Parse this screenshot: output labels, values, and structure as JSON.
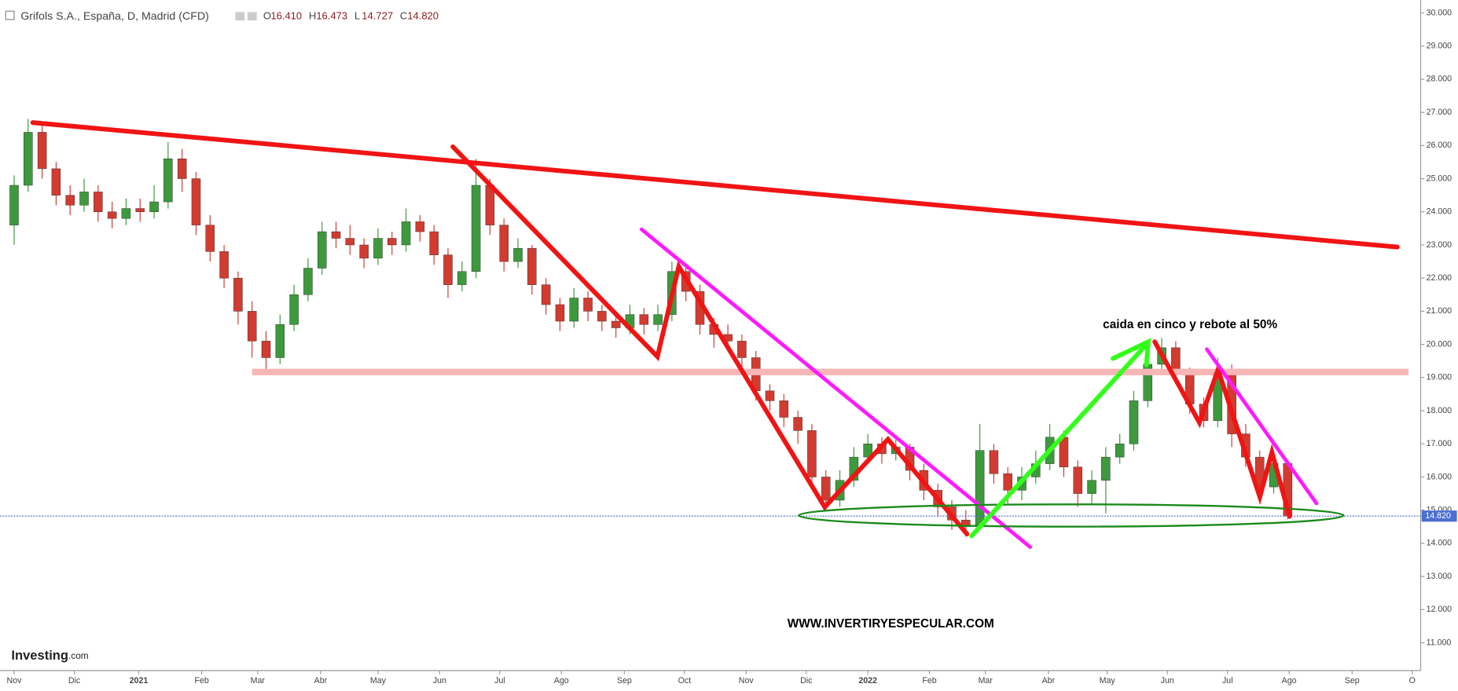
{
  "header": {
    "symbol": "Grifols S.A., España, D, Madrid (CFD)",
    "ohlc": [
      {
        "label": "O",
        "value": "16.410"
      },
      {
        "label": "H",
        "value": "16.473"
      },
      {
        "label": "L",
        "value": "14.727"
      },
      {
        "label": "C",
        "value": "14.820"
      }
    ]
  },
  "logo": {
    "brand": "Investing",
    "suffix": ".com"
  },
  "chart_data": {
    "type": "candlestick",
    "annotations": [
      "caida en cinco y rebote al 50%",
      "WWW.INVERTIRYESPECULAR.COM"
    ],
    "up_color": "#3c9a3c",
    "down_color": "#d23b30",
    "x": [
      0,
      1,
      2,
      3,
      4,
      5,
      6,
      7,
      8,
      9,
      10,
      11,
      12,
      13,
      14,
      15,
      16,
      17,
      18,
      19,
      20,
      21,
      22,
      23,
      24,
      25,
      26,
      27,
      28,
      29,
      30,
      31,
      32,
      33,
      34,
      35,
      36,
      37,
      38,
      39,
      40,
      41,
      42,
      43,
      44,
      45,
      46,
      47,
      48,
      49,
      50,
      51,
      52,
      53,
      54,
      55,
      56,
      57,
      58,
      59,
      60,
      61,
      62,
      63,
      64,
      65,
      66,
      67,
      68,
      69,
      70,
      71,
      72,
      73,
      74,
      75,
      76,
      77,
      78,
      79,
      80,
      81,
      82,
      83,
      84,
      85,
      86,
      87,
      88,
      89,
      90,
      91
    ],
    "series": [
      {
        "name": "Grifols S.A.",
        "open": [
          23.6,
          24.8,
          26.4,
          25.3,
          24.5,
          24.2,
          24.6,
          24.0,
          23.8,
          24.1,
          24.0,
          24.3,
          25.6,
          25.0,
          23.6,
          22.8,
          22.0,
          21.0,
          20.1,
          19.6,
          20.6,
          21.5,
          22.3,
          23.4,
          23.2,
          23.0,
          22.6,
          23.2,
          23.0,
          23.7,
          23.4,
          22.7,
          21.8,
          22.2,
          24.8,
          23.6,
          22.5,
          22.9,
          21.8,
          21.2,
          20.7,
          21.4,
          21.0,
          20.7,
          20.5,
          20.9,
          20.6,
          20.9,
          22.2,
          21.6,
          20.6,
          20.3,
          20.1,
          19.6,
          18.6,
          18.3,
          17.8,
          17.4,
          16.0,
          15.3,
          15.9,
          16.6,
          17.0,
          16.7,
          16.9,
          16.2,
          15.6,
          15.1,
          14.7,
          14.5,
          16.8,
          16.1,
          15.6,
          16.0,
          16.4,
          17.2,
          16.3,
          15.5,
          15.9,
          16.6,
          17.0,
          18.3,
          19.4,
          19.9,
          19.1,
          18.2,
          17.7,
          19.2,
          17.3,
          16.6,
          15.7,
          16.41
        ],
        "high": [
          25.1,
          26.8,
          26.6,
          25.5,
          24.8,
          25.0,
          24.8,
          24.3,
          24.4,
          24.4,
          24.8,
          26.1,
          25.9,
          25.2,
          23.9,
          23.0,
          22.2,
          21.3,
          20.4,
          20.9,
          21.8,
          22.6,
          23.7,
          23.7,
          23.6,
          23.2,
          23.5,
          23.4,
          24.1,
          23.9,
          23.6,
          22.9,
          22.5,
          25.6,
          25.0,
          23.8,
          23.2,
          23.0,
          22.0,
          21.4,
          21.7,
          21.6,
          21.2,
          20.9,
          21.2,
          21.1,
          21.2,
          22.5,
          22.4,
          21.8,
          20.8,
          20.6,
          20.3,
          19.8,
          18.8,
          18.5,
          18.0,
          17.6,
          16.2,
          16.2,
          16.9,
          17.3,
          17.2,
          17.2,
          17.0,
          16.4,
          15.8,
          15.3,
          15.0,
          17.6,
          17.0,
          16.3,
          16.3,
          16.8,
          17.6,
          17.4,
          16.5,
          16.2,
          16.9,
          17.3,
          18.6,
          19.7,
          20.2,
          20.1,
          19.3,
          18.4,
          19.6,
          19.4,
          17.6,
          16.8,
          16.8,
          16.473
        ],
        "low": [
          23.0,
          24.6,
          25.0,
          24.2,
          23.9,
          24.0,
          23.7,
          23.5,
          23.6,
          23.7,
          23.8,
          24.1,
          24.6,
          23.3,
          22.5,
          21.7,
          20.6,
          19.6,
          19.2,
          19.4,
          20.4,
          21.3,
          22.1,
          22.9,
          22.7,
          22.3,
          22.4,
          22.7,
          22.8,
          23.1,
          22.4,
          21.4,
          21.6,
          22.0,
          23.3,
          22.2,
          22.3,
          21.5,
          20.9,
          20.4,
          20.5,
          20.7,
          20.4,
          20.2,
          20.3,
          20.3,
          20.4,
          20.7,
          21.3,
          20.3,
          19.9,
          19.8,
          19.3,
          18.3,
          18.0,
          17.5,
          17.0,
          15.7,
          15.0,
          15.1,
          15.7,
          16.4,
          16.4,
          16.5,
          15.9,
          15.3,
          14.8,
          14.4,
          14.2,
          14.4,
          15.8,
          15.2,
          15.3,
          15.8,
          16.2,
          16.0,
          15.1,
          15.2,
          14.9,
          16.4,
          16.8,
          18.1,
          19.2,
          18.8,
          17.9,
          17.5,
          17.5,
          16.9,
          16.3,
          15.4,
          15.5,
          14.727
        ],
        "close": [
          24.8,
          26.4,
          25.3,
          24.5,
          24.2,
          24.6,
          24.0,
          23.8,
          24.1,
          24.0,
          24.3,
          25.6,
          25.0,
          23.6,
          22.8,
          22.0,
          21.0,
          20.1,
          19.6,
          20.6,
          21.5,
          22.3,
          23.4,
          23.2,
          23.0,
          22.6,
          23.2,
          23.0,
          23.7,
          23.4,
          22.7,
          21.8,
          22.2,
          24.8,
          23.6,
          22.5,
          22.9,
          21.8,
          21.2,
          20.7,
          21.4,
          21.0,
          20.7,
          20.5,
          20.9,
          20.6,
          20.9,
          22.2,
          21.6,
          20.6,
          20.3,
          20.1,
          19.6,
          18.6,
          18.3,
          17.8,
          17.4,
          16.0,
          15.3,
          15.9,
          16.6,
          17.0,
          16.7,
          16.9,
          16.2,
          15.6,
          15.1,
          14.7,
          14.5,
          16.8,
          16.1,
          15.6,
          16.0,
          16.4,
          17.2,
          16.3,
          15.5,
          15.9,
          16.6,
          17.0,
          18.3,
          19.4,
          19.9,
          19.1,
          18.2,
          17.7,
          19.2,
          17.3,
          16.6,
          15.7,
          16.41,
          14.82
        ]
      }
    ],
    "xlim": [
      -1,
      100.5
    ],
    "xticks": [
      {
        "value": 0,
        "label": "Nov"
      },
      {
        "value": 4.3,
        "label": "Dic"
      },
      {
        "value": 8.9,
        "label": "2021"
      },
      {
        "value": 13.4,
        "label": "Feb"
      },
      {
        "value": 17.4,
        "label": "Mar"
      },
      {
        "value": 21.9,
        "label": "Abr"
      },
      {
        "value": 26,
        "label": "May"
      },
      {
        "value": 30.4,
        "label": "Jun"
      },
      {
        "value": 34.7,
        "label": "Jul"
      },
      {
        "value": 39.1,
        "label": "Ago"
      },
      {
        "value": 43.6,
        "label": "Sep"
      },
      {
        "value": 47.9,
        "label": "Oct"
      },
      {
        "value": 52.3,
        "label": "Nov"
      },
      {
        "value": 56.6,
        "label": "Dic"
      },
      {
        "value": 61,
        "label": "2022"
      },
      {
        "value": 65.4,
        "label": "Feb"
      },
      {
        "value": 69.4,
        "label": "Mar"
      },
      {
        "value": 73.9,
        "label": "Abr"
      },
      {
        "value": 78.1,
        "label": "May"
      },
      {
        "value": 82.4,
        "label": "Jun"
      },
      {
        "value": 86.7,
        "label": "Jul"
      },
      {
        "value": 91.1,
        "label": "Ago"
      },
      {
        "value": 95.6,
        "label": "Sep"
      },
      {
        "value": 99.9,
        "label": "O"
      }
    ],
    "ylim": [
      10.16,
      30.39
    ],
    "yticks": [
      {
        "value": 11,
        "label": "11.000"
      },
      {
        "value": 12,
        "label": "12.000"
      },
      {
        "value": 13,
        "label": "13.000"
      },
      {
        "value": 14,
        "label": "14.000"
      },
      {
        "value": 15,
        "label": "15.000"
      },
      {
        "value": 16,
        "label": "16.000"
      },
      {
        "value": 17,
        "label": "17.000"
      },
      {
        "value": 18,
        "label": "18.000"
      },
      {
        "value": 19,
        "label": "19.000"
      },
      {
        "value": 20,
        "label": "20.000"
      },
      {
        "value": 21,
        "label": "21.000"
      },
      {
        "value": 22,
        "label": "22.000"
      },
      {
        "value": 23,
        "label": "23.000"
      },
      {
        "value": 24,
        "label": "24.000"
      },
      {
        "value": 25,
        "label": "25.000"
      },
      {
        "value": 26,
        "label": "26.000"
      },
      {
        "value": 27,
        "label": "27.000"
      },
      {
        "value": 28,
        "label": "28.000"
      },
      {
        "value": 29,
        "label": "29.000"
      },
      {
        "value": 30,
        "label": "30.000"
      }
    ],
    "grid": false
  }
}
